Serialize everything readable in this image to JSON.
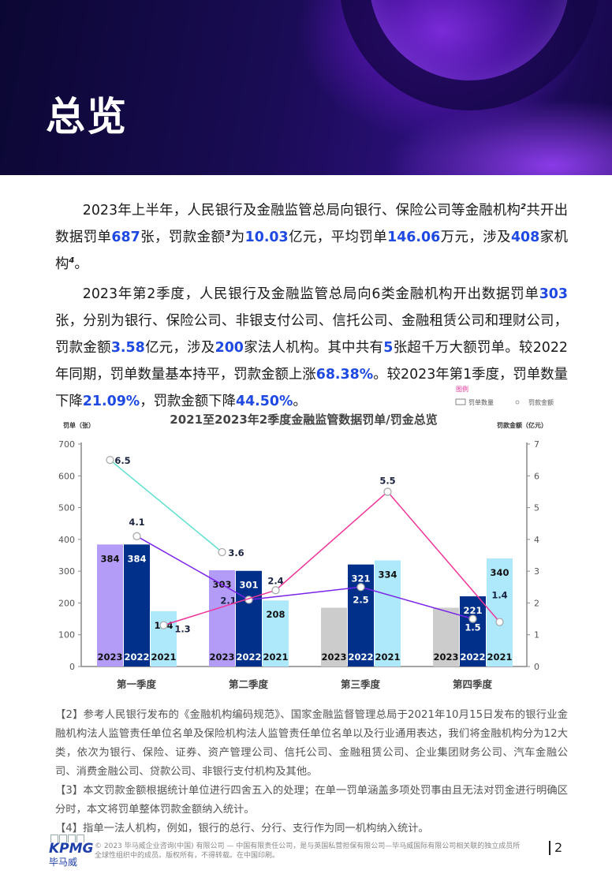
{
  "header": {
    "title": "总览"
  },
  "paragraphs": [
    [
      {
        "t": "2023年上半年，人民银行及金融监管总局向银行、保险公司等金融机构"
      },
      {
        "t": "2",
        "sup": true
      },
      {
        "t": "共开出数据罚单"
      },
      {
        "t": "687",
        "hl": true
      },
      {
        "t": "张，罚款金额"
      },
      {
        "t": "3",
        "sup": true
      },
      {
        "t": "为"
      },
      {
        "t": "10.03",
        "hl": true
      },
      {
        "t": "亿元，平均罚单"
      },
      {
        "t": "146.06",
        "hl": true
      },
      {
        "t": "万元，涉及"
      },
      {
        "t": "408",
        "hl": true
      },
      {
        "t": "家机构"
      },
      {
        "t": "4",
        "sup": true
      },
      {
        "t": "。"
      }
    ],
    [
      {
        "t": "2023年第2季度，人民银行及金融监管总局向6类金融机构开出数据罚单"
      },
      {
        "t": "303",
        "hl": true
      },
      {
        "t": "张，分别为银行、保险公司、非银支付公司、信托公司、金融租赁公司和理财公司，罚款金额"
      },
      {
        "t": "3.58",
        "hl": true
      },
      {
        "t": "亿元，涉及"
      },
      {
        "t": "200",
        "hl": true
      },
      {
        "t": "家法人机构。其中共有"
      },
      {
        "t": "5",
        "hl": true
      },
      {
        "t": "张超千万大额罚单。较2022年同期，罚单数量基本持平，罚款金额上涨"
      },
      {
        "t": "68.38%",
        "hl": true
      },
      {
        "t": "。较2023年第1季度，罚单数量下降"
      },
      {
        "t": "21.09%",
        "hl": true
      },
      {
        "t": "，罚款金额下降"
      },
      {
        "t": "44.50%",
        "hl": true
      },
      {
        "t": "。"
      }
    ]
  ],
  "chart_data": {
    "type": "bar+line",
    "title": "2021至2023年2季度金融监管数据罚单/罚金总览",
    "ylabel_left": "罚单（张）",
    "ylabel_right": "罚款金额（亿元）",
    "ylim_left": [
      0,
      700
    ],
    "ylim_right": [
      0,
      7
    ],
    "yticks_left": [
      "0",
      "100",
      "200",
      "300",
      "400",
      "500",
      "600",
      "700"
    ],
    "yticks_right": [
      "0",
      "1",
      "2",
      "3",
      "4",
      "5",
      "6",
      "7"
    ],
    "legend": {
      "title": "图例",
      "items": [
        "罚单数量",
        "罚款金额"
      ],
      "placement": "top-right"
    },
    "categories": [
      "第一季度",
      "第二季度",
      "第三季度",
      "第四季度"
    ],
    "bar_series": [
      {
        "name": "2023",
        "values": [
          384,
          303,
          null,
          null
        ],
        "color": "#b39cf7",
        "placeholder_color": "#cccccc",
        "placeholder_value": 185
      },
      {
        "name": "2022",
        "values": [
          384,
          301,
          321,
          221
        ],
        "color": "#00308a"
      },
      {
        "name": "2021",
        "values": [
          174,
          208,
          334,
          340
        ],
        "color": "#ade8fb"
      }
    ],
    "line_series": [
      {
        "name": "2023",
        "values": [
          6.5,
          3.6,
          null,
          null
        ],
        "color": "#5ce0d0"
      },
      {
        "name": "2022",
        "values": [
          4.1,
          2.1,
          2.5,
          1.5
        ],
        "color": "#7a22e8"
      },
      {
        "name": "2021",
        "values": [
          1.3,
          2.4,
          5.5,
          1.4
        ],
        "color": "#f0349a"
      }
    ],
    "grid": false
  },
  "notes": [
    "【2】参考人民银行发布的《金融机构编码规范》、国家金融监督管理总局于2021年10月15日发布的银行业金融机构法人监管责任单位名单及保险机构法人监管责任单位名单以及行业通用表达，我们将金融机构分为12大类，依次为银行、保险、证券、资产管理公司、信托公司、金融租赁公司、企业集团财务公司、汽车金融公司、消费金融公司、贷款公司、非银行支付机构及其他。",
    "【3】本文罚款金额根据统计单位进行四舍五入的处理；在单一罚单涵盖多项处罚事由且无法对罚金进行明确区分时，本文将罚单整体罚款金额纳入统计。",
    "【4】指单一法人机构，例如，银行的总行、分行、支行作为同一机构纳入统计。"
  ],
  "footer": {
    "logo": "KPMG",
    "logo_cn": "毕马威",
    "copyright": "© 2023 毕马威企业咨询(中国) 有限公司 — 中国有限责任公司，是与英国私营担保有限公司—毕马威国际有限公司相关联的独立成员所全球性组织中的成员。版权所有，不得转载。在中国印刷。",
    "page": "2"
  }
}
